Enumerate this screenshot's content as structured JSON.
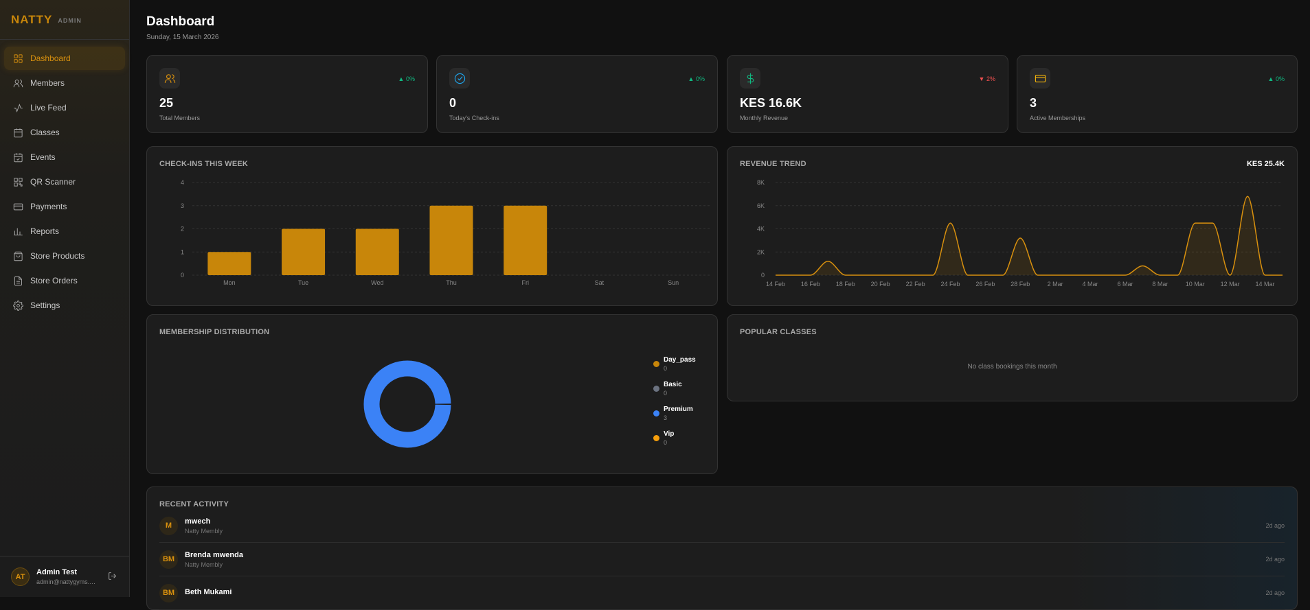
{
  "brand": {
    "logo": "NATTY",
    "sub": "ADMIN"
  },
  "nav": [
    {
      "label": "Dashboard",
      "icon": "grid-icon",
      "active": true
    },
    {
      "label": "Members",
      "icon": "users-icon"
    },
    {
      "label": "Live Feed",
      "icon": "activity-icon"
    },
    {
      "label": "Classes",
      "icon": "calendar-icon"
    },
    {
      "label": "Events",
      "icon": "calendar-check-icon"
    },
    {
      "label": "QR Scanner",
      "icon": "qr-icon"
    },
    {
      "label": "Payments",
      "icon": "credit-card-icon"
    },
    {
      "label": "Reports",
      "icon": "bar-chart-icon"
    },
    {
      "label": "Store Products",
      "icon": "shopping-bag-icon"
    },
    {
      "label": "Store Orders",
      "icon": "file-icon"
    },
    {
      "label": "Settings",
      "icon": "gear-icon"
    }
  ],
  "user": {
    "initials": "AT",
    "name": "Admin Test",
    "email": "admin@nattygyms.com"
  },
  "header": {
    "title": "Dashboard",
    "date": "Sunday, 15 March 2026"
  },
  "stats": [
    {
      "value": "25",
      "label": "Total Members",
      "change": "0%",
      "trend": "up",
      "icon": "users-icon",
      "color": "#d8900e"
    },
    {
      "value": "0",
      "label": "Today's Check-ins",
      "change": "0%",
      "trend": "up",
      "icon": "check-circle-icon",
      "color": "#1ea7f0"
    },
    {
      "value": "KES 16.6K",
      "label": "Monthly Revenue",
      "change": "2%",
      "trend": "down",
      "icon": "dollar-icon",
      "color": "#10b981"
    },
    {
      "value": "3",
      "label": "Active Memberships",
      "change": "0%",
      "trend": "up",
      "icon": "credit-card-icon",
      "color": "#f5b50a"
    }
  ],
  "checkins": {
    "title": "CHECK-INS THIS WEEK"
  },
  "revenue": {
    "title": "REVENUE TREND",
    "total": "KES 25.4K"
  },
  "membership": {
    "title": "MEMBERSHIP DISTRIBUTION"
  },
  "popular": {
    "title": "POPULAR CLASSES",
    "empty": "No class bookings this month"
  },
  "activity": {
    "title": "RECENT ACTIVITY",
    "items": [
      {
        "initials": "M",
        "name": "mwech",
        "sub": "Natty Membly",
        "time": "2d ago"
      },
      {
        "initials": "BM",
        "name": "Brenda mwenda",
        "sub": "Natty Membly",
        "time": "2d ago"
      },
      {
        "initials": "BM",
        "name": "Beth Mukami",
        "sub": "",
        "time": "2d ago"
      }
    ]
  },
  "chart_data": [
    {
      "type": "bar",
      "title": "CHECK-INS THIS WEEK",
      "categories": [
        "Mon",
        "Tue",
        "Wed",
        "Thu",
        "Fri",
        "Sat",
        "Sun"
      ],
      "values": [
        1,
        2,
        2,
        3,
        3,
        0,
        0
      ],
      "ylim": [
        0,
        4
      ],
      "yticks": [
        "0",
        "1",
        "2",
        "3",
        "4"
      ],
      "grid": true,
      "color": "#c8860a"
    },
    {
      "type": "area",
      "title": "REVENUE TREND",
      "x": [
        "14 Feb",
        "15 Feb",
        "16 Feb",
        "17 Feb",
        "18 Feb",
        "19 Feb",
        "20 Feb",
        "21 Feb",
        "22 Feb",
        "23 Feb",
        "24 Feb",
        "25 Feb",
        "26 Feb",
        "27 Feb",
        "28 Feb",
        "1 Mar",
        "2 Mar",
        "3 Mar",
        "4 Mar",
        "5 Mar",
        "6 Mar",
        "7 Mar",
        "8 Mar",
        "9 Mar",
        "10 Mar",
        "11 Mar",
        "12 Mar",
        "13 Mar",
        "14 Mar",
        "15 Mar"
      ],
      "y": [
        0,
        0,
        0,
        1200,
        0,
        0,
        0,
        0,
        0,
        0,
        4500,
        0,
        0,
        0,
        3200,
        0,
        0,
        0,
        0,
        0,
        0,
        800,
        0,
        0,
        4500,
        4500,
        0,
        6800,
        0,
        0
      ],
      "xticks": [
        "14 Feb",
        "16 Feb",
        "18 Feb",
        "20 Feb",
        "22 Feb",
        "24 Feb",
        "26 Feb",
        "28 Feb",
        "2 Mar",
        "4 Mar",
        "6 Mar",
        "8 Mar",
        "10 Mar",
        "12 Mar",
        "14 Mar"
      ],
      "ylim": [
        0,
        8000
      ],
      "yticks": [
        "0",
        "2K",
        "4K",
        "6K",
        "8K"
      ],
      "grid": true,
      "color": "#d8900e"
    },
    {
      "type": "pie",
      "title": "MEMBERSHIP DISTRIBUTION",
      "donut": true,
      "legend": "right",
      "slices": [
        {
          "name": "Day_pass",
          "value": 0,
          "color": "#c8860a"
        },
        {
          "name": "Basic",
          "value": 0,
          "color": "#6b7280"
        },
        {
          "name": "Premium",
          "value": 3,
          "color": "#3b82f6"
        },
        {
          "name": "Vip",
          "value": 0,
          "color": "#f59e0b"
        }
      ]
    }
  ]
}
